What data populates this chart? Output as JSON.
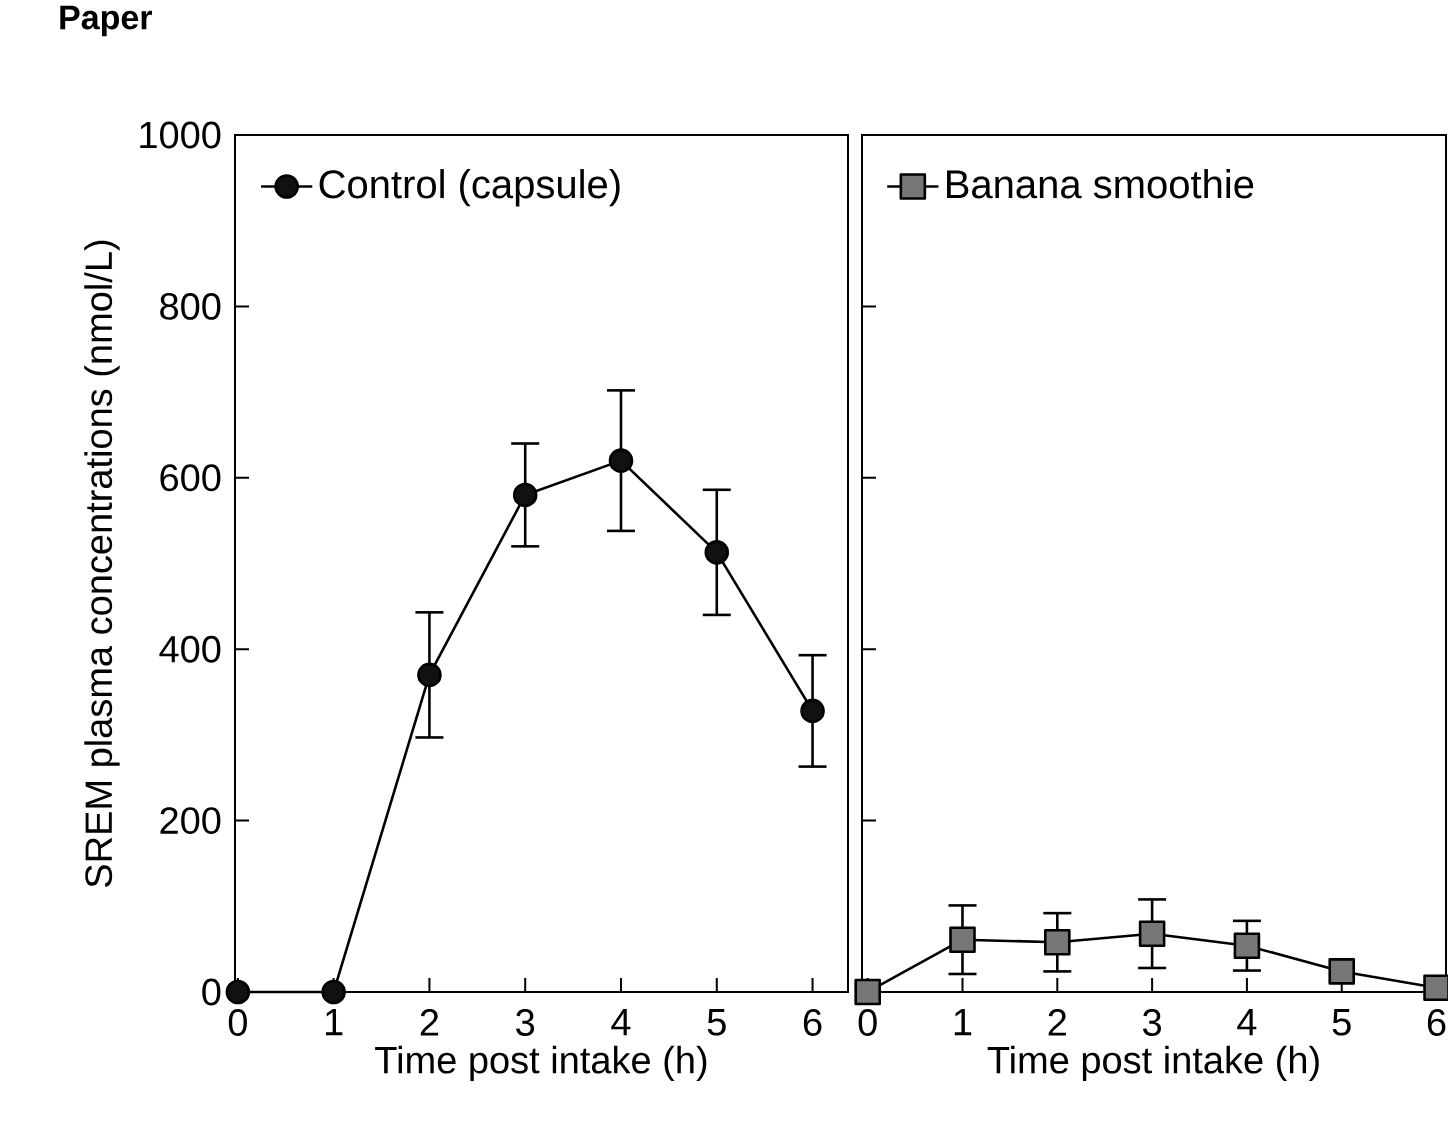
{
  "chart_data": [
    {
      "type": "line",
      "ylabel": "SREM plasma concentrations (nmol/L)",
      "xlabel": "Time post intake (h)",
      "annotations": [
        "Paper"
      ],
      "x": [
        0,
        1,
        2,
        3,
        4,
        5,
        6
      ],
      "xlim": [
        -0.03,
        6.37
      ],
      "xticks": [
        0,
        1,
        2,
        3,
        4,
        5,
        6
      ],
      "ylim": [
        0,
        1000
      ],
      "yticks": [
        0,
        200,
        400,
        600,
        800,
        1000
      ],
      "series": [
        {
          "name": "Control (capsule)",
          "color": "#111111",
          "marker": "circle",
          "values": [
            0,
            0,
            370,
            580,
            620,
            513,
            328
          ],
          "errors": [
            null,
            null,
            73,
            60,
            82,
            73,
            65
          ]
        }
      ],
      "legend": "top left",
      "grid": false
    },
    {
      "type": "line",
      "xlabel": "Time post intake (h)",
      "x": [
        0,
        1,
        2,
        3,
        4,
        5,
        6
      ],
      "xlim": [
        -0.06,
        6.1
      ],
      "xticks": [
        0,
        1,
        2,
        3,
        4,
        5,
        6
      ],
      "ylim": [
        0,
        1000
      ],
      "yticks": [
        {
          "value": 0,
          "label": null
        },
        {
          "value": 200,
          "label": null
        },
        {
          "value": 400,
          "label": null
        },
        {
          "value": 600,
          "label": null
        },
        {
          "value": 800,
          "label": null
        },
        {
          "value": 1000,
          "label": null
        }
      ],
      "series": [
        {
          "name": "Banana smoothie",
          "color": "#777777",
          "marker": "square",
          "values": [
            0,
            61,
            58,
            68,
            54,
            24,
            5
          ],
          "errors": [
            null,
            40,
            34,
            40,
            29,
            null,
            null
          ]
        }
      ],
      "legend": "top left",
      "grid": false,
      "tick_labels": "x"
    }
  ]
}
